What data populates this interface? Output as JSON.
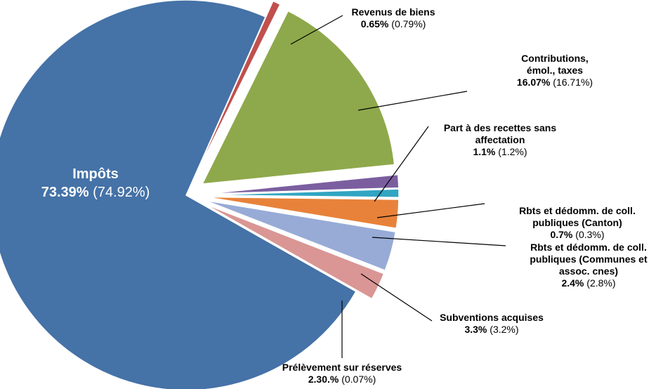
{
  "chart_data": {
    "type": "pie",
    "title": "",
    "slices": [
      {
        "name": "Revenus de biens",
        "value": 0.65,
        "value_label": "0.65%",
        "prev_label": "(0.79%)",
        "color": "#C0504D",
        "label_lines": [
          "Revenus de biens"
        ]
      },
      {
        "name": "Contributions, émol., taxes",
        "value": 16.07,
        "value_label": "16.07%",
        "prev_label": "(16.71%)",
        "color": "#8EA94B",
        "label_lines": [
          "Contributions,",
          "émol., taxes"
        ]
      },
      {
        "name": "Part à des recettes sans affectation",
        "value": 1.1,
        "value_label": "1.1%",
        "prev_label": "(1.2%)",
        "color": "#7B5E9F",
        "label_lines": [
          "Part à des recettes sans",
          "affectation"
        ]
      },
      {
        "name": "Rbts et dédomm. de coll. publiques (Canton)",
        "value": 0.7,
        "value_label": "0.7%",
        "prev_label": "(0.3%)",
        "color": "#31A5C2",
        "label_lines": [
          "Rbts et dédomm. de coll.",
          "publiques (Canton)"
        ]
      },
      {
        "name": "Rbts et dédomm. de coll. publiques (Communes et assoc. cnes)",
        "value": 2.4,
        "value_label": "2.4%",
        "prev_label": "(2.8%)",
        "color": "#E8823A",
        "label_lines": [
          "Rbts et dédomm. de coll.",
          "publiques (Communes et",
          "assoc. cnes)"
        ]
      },
      {
        "name": "Subventions acquises",
        "value": 3.3,
        "value_label": "3.3%",
        "prev_label": "(3.2%)",
        "color": "#97ABD6",
        "label_lines": [
          "Subventions acquises"
        ]
      },
      {
        "name": "Prélèvement sur réserves",
        "value": 2.3,
        "value_label": "2.30.%",
        "prev_label": "(0.07%)",
        "color": "#D99694",
        "label_lines": [
          "Prélèvement sur réserves"
        ]
      },
      {
        "name": "Impôts",
        "value": 73.39,
        "value_label": "73.39%",
        "prev_label": "(74.92%)",
        "color": "#4572A7",
        "label_lines": [
          "Impôts"
        ]
      }
    ],
    "legend": "none"
  }
}
